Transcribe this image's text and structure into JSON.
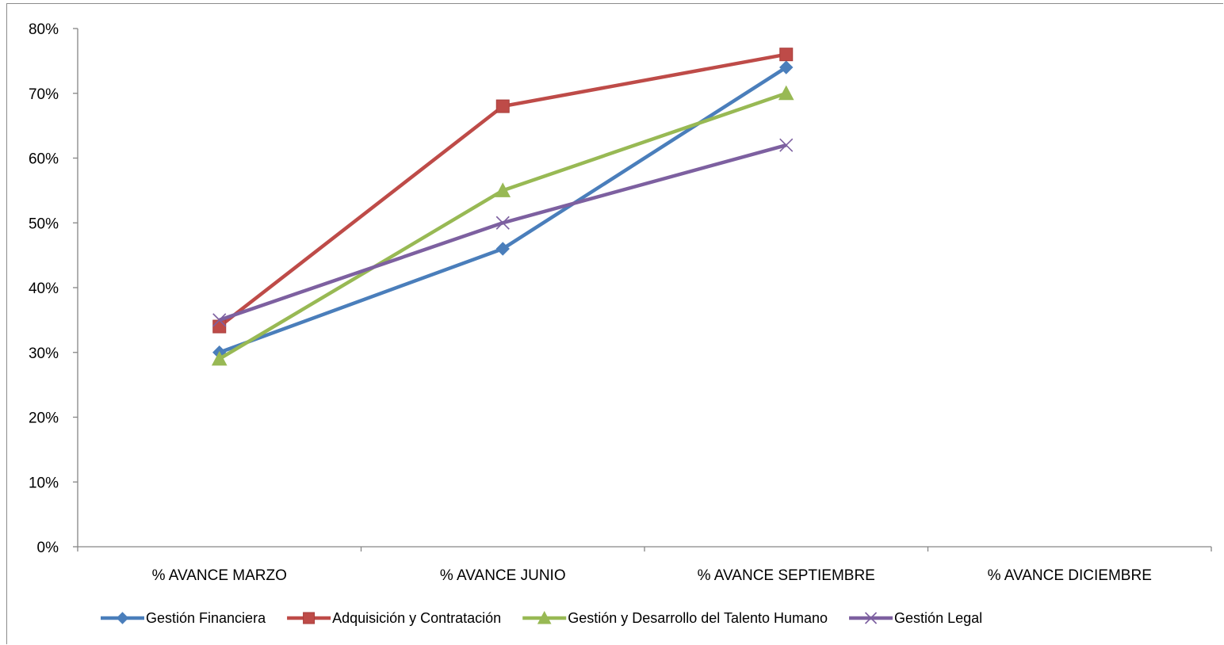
{
  "chart_data": {
    "type": "line",
    "title": "",
    "xlabel": "",
    "ylabel": "",
    "categories": [
      "% AVANCE MARZO",
      "% AVANCE JUNIO",
      "% AVANCE SEPTIEMBRE",
      "% AVANCE DICIEMBRE"
    ],
    "ylim": [
      0,
      0.8
    ],
    "yticks": [
      "0%",
      "10%",
      "20%",
      "30%",
      "40%",
      "50%",
      "60%",
      "70%",
      "80%"
    ],
    "grid": false,
    "legend": "bottom",
    "series": [
      {
        "name": "Gestión Financiera",
        "color": "#4a7ebb",
        "marker": "diamond",
        "values": [
          0.3,
          0.46,
          0.74,
          null
        ]
      },
      {
        "name": "Adquisición y Contratación",
        "color": "#be4b48",
        "marker": "square",
        "values": [
          0.34,
          0.68,
          0.76,
          null
        ]
      },
      {
        "name": "Gestión y Desarrollo del Talento Humano",
        "color": "#98b954",
        "marker": "triangle",
        "values": [
          0.29,
          0.55,
          0.7,
          null
        ]
      },
      {
        "name": "Gestión Legal",
        "color": "#7d60a0",
        "marker": "x",
        "values": [
          0.35,
          0.5,
          0.62,
          null
        ]
      }
    ]
  }
}
